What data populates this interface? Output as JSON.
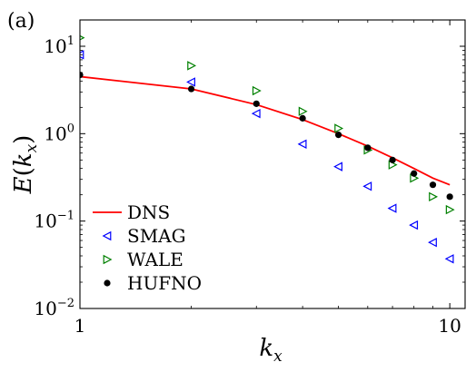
{
  "chart_data": {
    "type": "scatter",
    "panel_label": "(a)",
    "xlabel": "k_x",
    "ylabel": "E(k_x)",
    "xscale": "log",
    "yscale": "log",
    "xlim": [
      1,
      11
    ],
    "ylim": [
      0.01,
      20
    ],
    "x_ticks": [
      {
        "value": 1,
        "label": "1"
      },
      {
        "value": 10,
        "label": "10"
      }
    ],
    "y_ticks": [
      {
        "value": 0.01,
        "base": "10",
        "exp": "−2"
      },
      {
        "value": 0.1,
        "base": "10",
        "exp": "−1"
      },
      {
        "value": 1,
        "base": "10",
        "exp": "0"
      },
      {
        "value": 10,
        "base": "10",
        "exp": "1"
      }
    ],
    "legend_position": "lower-left",
    "grid": false,
    "series": [
      {
        "name": "DNS",
        "kind": "line",
        "color": "#ff0000",
        "x": [
          1,
          2,
          3,
          4,
          5,
          6,
          7,
          8,
          9,
          10
        ],
        "y": [
          4.5,
          3.25,
          2.15,
          1.45,
          1.0,
          0.72,
          0.53,
          0.4,
          0.31,
          0.26
        ]
      },
      {
        "name": "SMAG",
        "kind": "marker",
        "marker": "triangle-left",
        "color": "#0000ff",
        "x": [
          1,
          2,
          3,
          4,
          5,
          6,
          7,
          8,
          9,
          10
        ],
        "y": [
          8.0,
          3.9,
          1.7,
          0.76,
          0.42,
          0.25,
          0.14,
          0.09,
          0.057,
          0.037
        ]
      },
      {
        "name": "WALE",
        "kind": "marker",
        "marker": "triangle-right",
        "color": "#008000",
        "x": [
          1,
          2,
          3,
          4,
          5,
          6,
          7,
          8,
          9,
          10
        ],
        "y": [
          12.5,
          6.0,
          3.1,
          1.8,
          1.15,
          0.65,
          0.44,
          0.31,
          0.19,
          0.135
        ]
      },
      {
        "name": "HUFNO",
        "kind": "marker",
        "marker": "circle",
        "color": "#000000",
        "x": [
          1,
          2,
          3,
          4,
          5,
          6,
          7,
          8,
          9,
          10
        ],
        "y": [
          4.7,
          3.25,
          2.2,
          1.5,
          0.97,
          0.69,
          0.5,
          0.35,
          0.26,
          0.19
        ]
      }
    ]
  }
}
